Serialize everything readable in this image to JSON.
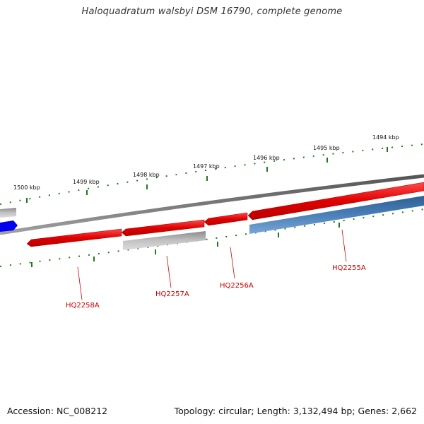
{
  "header": {
    "title": "Haloquadratum walsbyi DSM 16790, complete genome"
  },
  "footer": {
    "accession": "Accession: NC_008212",
    "summary": "Topology: circular; Length: 3,132,494 bp; Genes: 2,662"
  },
  "ruler": {
    "labels": [
      "1500 kbp",
      "1499 kbp",
      "1498 kbp",
      "1497 kbp",
      "1496 kbp",
      "1495 kbp",
      "1494 kbp"
    ],
    "tick_color": "#1f7a1f"
  },
  "genes": [
    {
      "label": "HQ2258A",
      "color": "#e00000"
    },
    {
      "label": "HQ2257A",
      "color": "#e00000"
    },
    {
      "label": "HQ2256A",
      "color": "#e00000"
    },
    {
      "label": "HQ2255A",
      "color": "#e00000"
    }
  ],
  "colors": {
    "backbone": "#707070",
    "cds_forward": "#e00000",
    "cds_gray": "#a8a8a8",
    "cds_blue": "#3f73a8",
    "cds_bright_blue": "#0000ee",
    "label": "#cc0000"
  }
}
